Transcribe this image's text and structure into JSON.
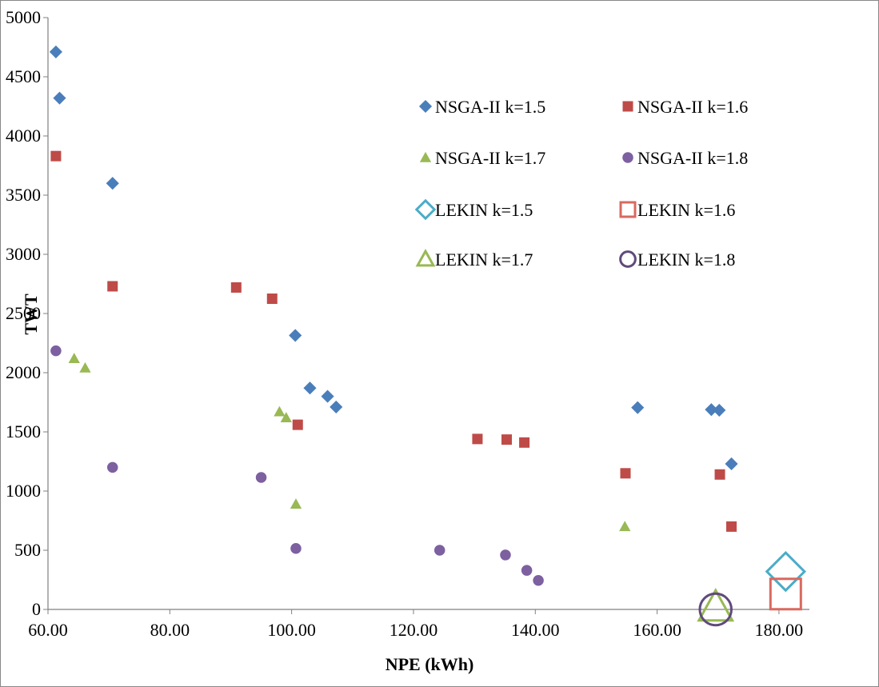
{
  "chart_data": {
    "type": "scatter",
    "xlabel": "NPE (kWh)",
    "ylabel": "TWT",
    "xlim": [
      60,
      185
    ],
    "ylim": [
      0,
      5000
    ],
    "x_ticks": [
      60,
      80,
      100,
      120,
      140,
      160,
      180
    ],
    "x_tick_labels": [
      "60.00",
      "80.00",
      "100.00",
      "120.00",
      "140.00",
      "160.00",
      "180.00"
    ],
    "y_ticks": [
      0,
      500,
      1000,
      1500,
      2000,
      2500,
      3000,
      3500,
      4000,
      4500,
      5000
    ],
    "y_tick_labels": [
      "0",
      "500",
      "1000",
      "1500",
      "2000",
      "2500",
      "3000",
      "3500",
      "4000",
      "4500",
      "5000"
    ],
    "grid": false,
    "legend_position": "inside-top-right",
    "series": [
      {
        "name": "NSGA-II k=1.5",
        "marker": "diamond",
        "filled": true,
        "color": "#4a7ebb",
        "points": [
          {
            "x": 61.3,
            "y": 4710
          },
          {
            "x": 61.9,
            "y": 4320
          },
          {
            "x": 70.6,
            "y": 3600
          },
          {
            "x": 100.6,
            "y": 2315
          },
          {
            "x": 103.0,
            "y": 1870
          },
          {
            "x": 105.9,
            "y": 1800
          },
          {
            "x": 107.3,
            "y": 1710
          },
          {
            "x": 156.8,
            "y": 1705
          },
          {
            "x": 168.9,
            "y": 1688
          },
          {
            "x": 170.2,
            "y": 1683
          },
          {
            "x": 172.2,
            "y": 1230
          }
        ]
      },
      {
        "name": "NSGA-II k=1.6",
        "marker": "square",
        "filled": true,
        "color": "#be4b48",
        "points": [
          {
            "x": 61.3,
            "y": 3830
          },
          {
            "x": 70.6,
            "y": 2730
          },
          {
            "x": 90.9,
            "y": 2720
          },
          {
            "x": 96.8,
            "y": 2625
          },
          {
            "x": 101.0,
            "y": 1560
          },
          {
            "x": 130.5,
            "y": 1440
          },
          {
            "x": 135.3,
            "y": 1435
          },
          {
            "x": 138.2,
            "y": 1410
          },
          {
            "x": 154.8,
            "y": 1150
          },
          {
            "x": 170.3,
            "y": 1140
          },
          {
            "x": 172.2,
            "y": 700
          }
        ]
      },
      {
        "name": "NSGA-II k=1.7",
        "marker": "triangle",
        "filled": true,
        "color": "#98b954",
        "points": [
          {
            "x": 64.3,
            "y": 2120
          },
          {
            "x": 66.1,
            "y": 2040
          },
          {
            "x": 98.0,
            "y": 1670
          },
          {
            "x": 99.1,
            "y": 1620
          },
          {
            "x": 100.7,
            "y": 890
          },
          {
            "x": 154.7,
            "y": 700
          }
        ]
      },
      {
        "name": "NSGA-II k=1.8",
        "marker": "circle",
        "filled": true,
        "color": "#7d60a0",
        "points": [
          {
            "x": 61.3,
            "y": 2185
          },
          {
            "x": 70.6,
            "y": 1200
          },
          {
            "x": 95.0,
            "y": 1115
          },
          {
            "x": 100.7,
            "y": 515
          },
          {
            "x": 124.3,
            "y": 500
          },
          {
            "x": 135.1,
            "y": 460
          },
          {
            "x": 138.6,
            "y": 330
          },
          {
            "x": 140.5,
            "y": 245
          }
        ]
      },
      {
        "name": "LEKIN k=1.5",
        "marker": "diamond",
        "filled": false,
        "color": "#4bacc6",
        "points": [
          {
            "x": 181.1,
            "y": 320
          }
        ]
      },
      {
        "name": "LEKIN k=1.6",
        "marker": "square",
        "filled": false,
        "color": "#d9695f",
        "points": [
          {
            "x": 181.1,
            "y": 130
          }
        ]
      },
      {
        "name": "LEKIN k=1.7",
        "marker": "triangle",
        "filled": false,
        "color": "#98b954",
        "points": [
          {
            "x": 169.6,
            "y": 20
          }
        ]
      },
      {
        "name": "LEKIN k=1.8",
        "marker": "circle",
        "filled": false,
        "color": "#604a7b",
        "points": [
          {
            "x": 169.6,
            "y": 0
          }
        ]
      }
    ]
  }
}
